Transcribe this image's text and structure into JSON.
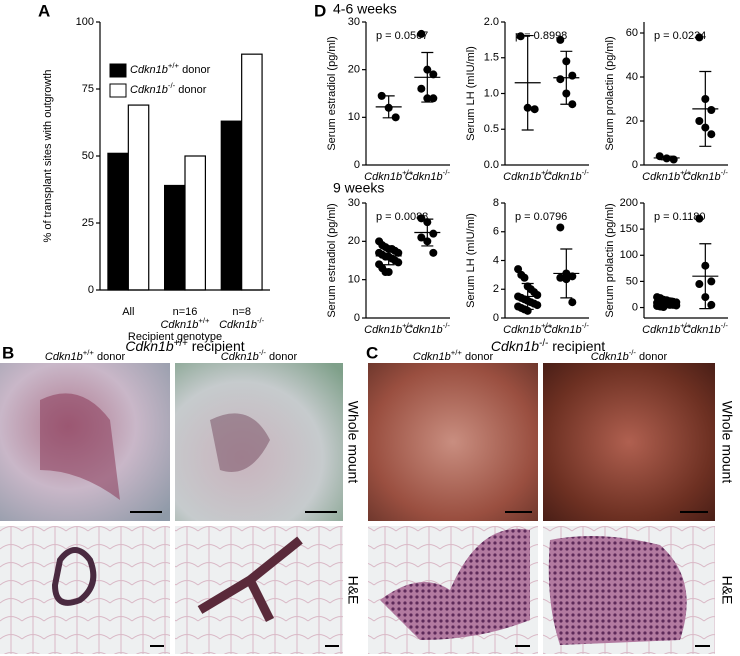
{
  "chart_data": [
    {
      "type": "bar",
      "ylabel": "% of transplant sites with outgrowth",
      "xlabel": "Recipient genotype",
      "categories": [
        "All",
        "n=16",
        "n=8"
      ],
      "category_sublabels": [
        null,
        "Cdkn1b+/+",
        "Cdkn1b-/-"
      ],
      "series": [
        {
          "name": "Cdkn1b+/+ donor",
          "color": "#000000",
          "values": [
            51,
            39,
            63
          ]
        },
        {
          "name": "Cdkn1b-/- donor",
          "color": "#ffffff",
          "values": [
            69,
            50,
            88
          ]
        }
      ],
      "ylim": [
        0,
        100
      ],
      "yticks": [
        0,
        25,
        50,
        75,
        100
      ]
    },
    {
      "type": "dot",
      "ylabel": "Serum estradiol (pg/ml)",
      "annotation": "p = 0.0567",
      "ylim": [
        0,
        30
      ],
      "yticks": [
        0,
        10,
        20,
        30
      ],
      "groups": [
        {
          "name": "Cdkn1b+/+",
          "values": [
            14.5,
            12,
            10
          ],
          "mean": 12.2,
          "sd": 2.3
        },
        {
          "name": "Cdkn1b-/-",
          "values": [
            27.5,
            20,
            19,
            16,
            14,
            14
          ],
          "mean": 18.4,
          "sd": 5.2
        }
      ]
    },
    {
      "type": "dot",
      "ylabel": "Serum LH (mIU/ml)",
      "annotation": "p = 0.8998",
      "ylim": [
        0,
        2
      ],
      "yticks": [
        {
          "value": 0,
          "label": "0.0"
        },
        0.5,
        {
          "value": 1,
          "label": "1.0"
        },
        1.5,
        {
          "value": 2,
          "label": "2.0"
        }
      ],
      "groups": [
        {
          "name": "Cdkn1b+/+",
          "values": [
            1.8,
            0.8,
            0.78
          ],
          "mean": 1.15,
          "sd": 0.66
        },
        {
          "name": "Cdkn1b-/-",
          "values": [
            1.75,
            1.45,
            1.25,
            1.2,
            1.0,
            0.85
          ],
          "mean": 1.22,
          "sd": 0.37
        }
      ]
    },
    {
      "type": "dot",
      "ylabel": "Serum prolactin (pg/ml)",
      "annotation": "p = 0.0234",
      "ylim": [
        0,
        65
      ],
      "yticks": [
        0,
        20,
        40,
        60
      ],
      "groups": [
        {
          "name": "Cdkn1b+/+",
          "values": [
            4,
            3,
            2.5
          ],
          "mean": 3.2,
          "sd": 0.8
        },
        {
          "name": "Cdkn1b-/-",
          "values": [
            58,
            30,
            25,
            20,
            17,
            14
          ],
          "mean": 25.5,
          "sd": 17
        }
      ]
    },
    {
      "type": "dot",
      "ylabel": "Serum estradiol (pg/ml)",
      "annotation": "p = 0.0088",
      "ylim": [
        0,
        30
      ],
      "yticks": [
        0,
        10,
        20,
        30
      ],
      "groups": [
        {
          "name": "Cdkn1b+/+",
          "values": [
            20,
            19,
            18.5,
            18,
            18,
            17.5,
            17,
            17,
            16.5,
            16,
            16,
            15.5,
            15,
            14.5,
            14,
            13,
            12,
            12
          ],
          "mean": 16.2,
          "sd": 2.3
        },
        {
          "name": "Cdkn1b-/-",
          "values": [
            26,
            25,
            22,
            21,
            20,
            17
          ],
          "mean": 22.3,
          "sd": 3.5
        }
      ]
    },
    {
      "type": "dot",
      "ylabel": "Serum LH (mIU/ml)",
      "annotation": "p = 0.0796",
      "ylim": [
        0,
        8
      ],
      "yticks": [
        0,
        2,
        4,
        6,
        8
      ],
      "groups": [
        {
          "name": "Cdkn1b+/+",
          "values": [
            3.4,
            3.0,
            2.8,
            2.2,
            2.0,
            1.8,
            1.6,
            1.5,
            1.4,
            1.3,
            1.2,
            1.1,
            1.0,
            0.9,
            0.8,
            0.7,
            0.6,
            0.5
          ],
          "mean": 1.5,
          "sd": 0.9
        },
        {
          "name": "Cdkn1b-/-",
          "values": [
            6.3,
            3.1,
            2.9,
            2.8,
            2.7,
            1.1
          ],
          "mean": 3.1,
          "sd": 1.7
        }
      ]
    },
    {
      "type": "dot",
      "ylabel": "Serum prolactin (pg/ml)",
      "annotation": "p = 0.1180",
      "ylim": [
        -20,
        200
      ],
      "yticks": [
        0,
        50,
        100,
        150,
        200
      ],
      "groups": [
        {
          "name": "Cdkn1b+/+",
          "values": [
            20,
            18,
            15,
            14,
            12,
            11,
            10,
            9,
            8,
            7,
            6,
            5,
            5,
            4,
            3,
            2,
            1
          ],
          "mean": 10,
          "sd": 8
        },
        {
          "name": "Cdkn1b-/-",
          "values": [
            170,
            80,
            50,
            45,
            20,
            5
          ],
          "mean": 60,
          "sd": 62
        }
      ]
    }
  ],
  "panels": {
    "A": {
      "label": "A"
    },
    "D": {
      "label": "D",
      "rows": [
        "4-6 weeks",
        "9 weeks"
      ]
    },
    "B": {
      "label": "B",
      "title": "Cdkn1b+/+ recipient",
      "columns": [
        "Cdkn1b+/+ donor",
        "Cdkn1b-/- donor"
      ],
      "rows": [
        "Whole mount",
        "H&E"
      ]
    },
    "C": {
      "label": "C",
      "title": "Cdkn1b-/- recipient",
      "columns": [
        "Cdkn1b+/+ donor",
        "Cdkn1b-/- donor"
      ],
      "rows": [
        "Whole mount",
        "H&E"
      ]
    }
  }
}
